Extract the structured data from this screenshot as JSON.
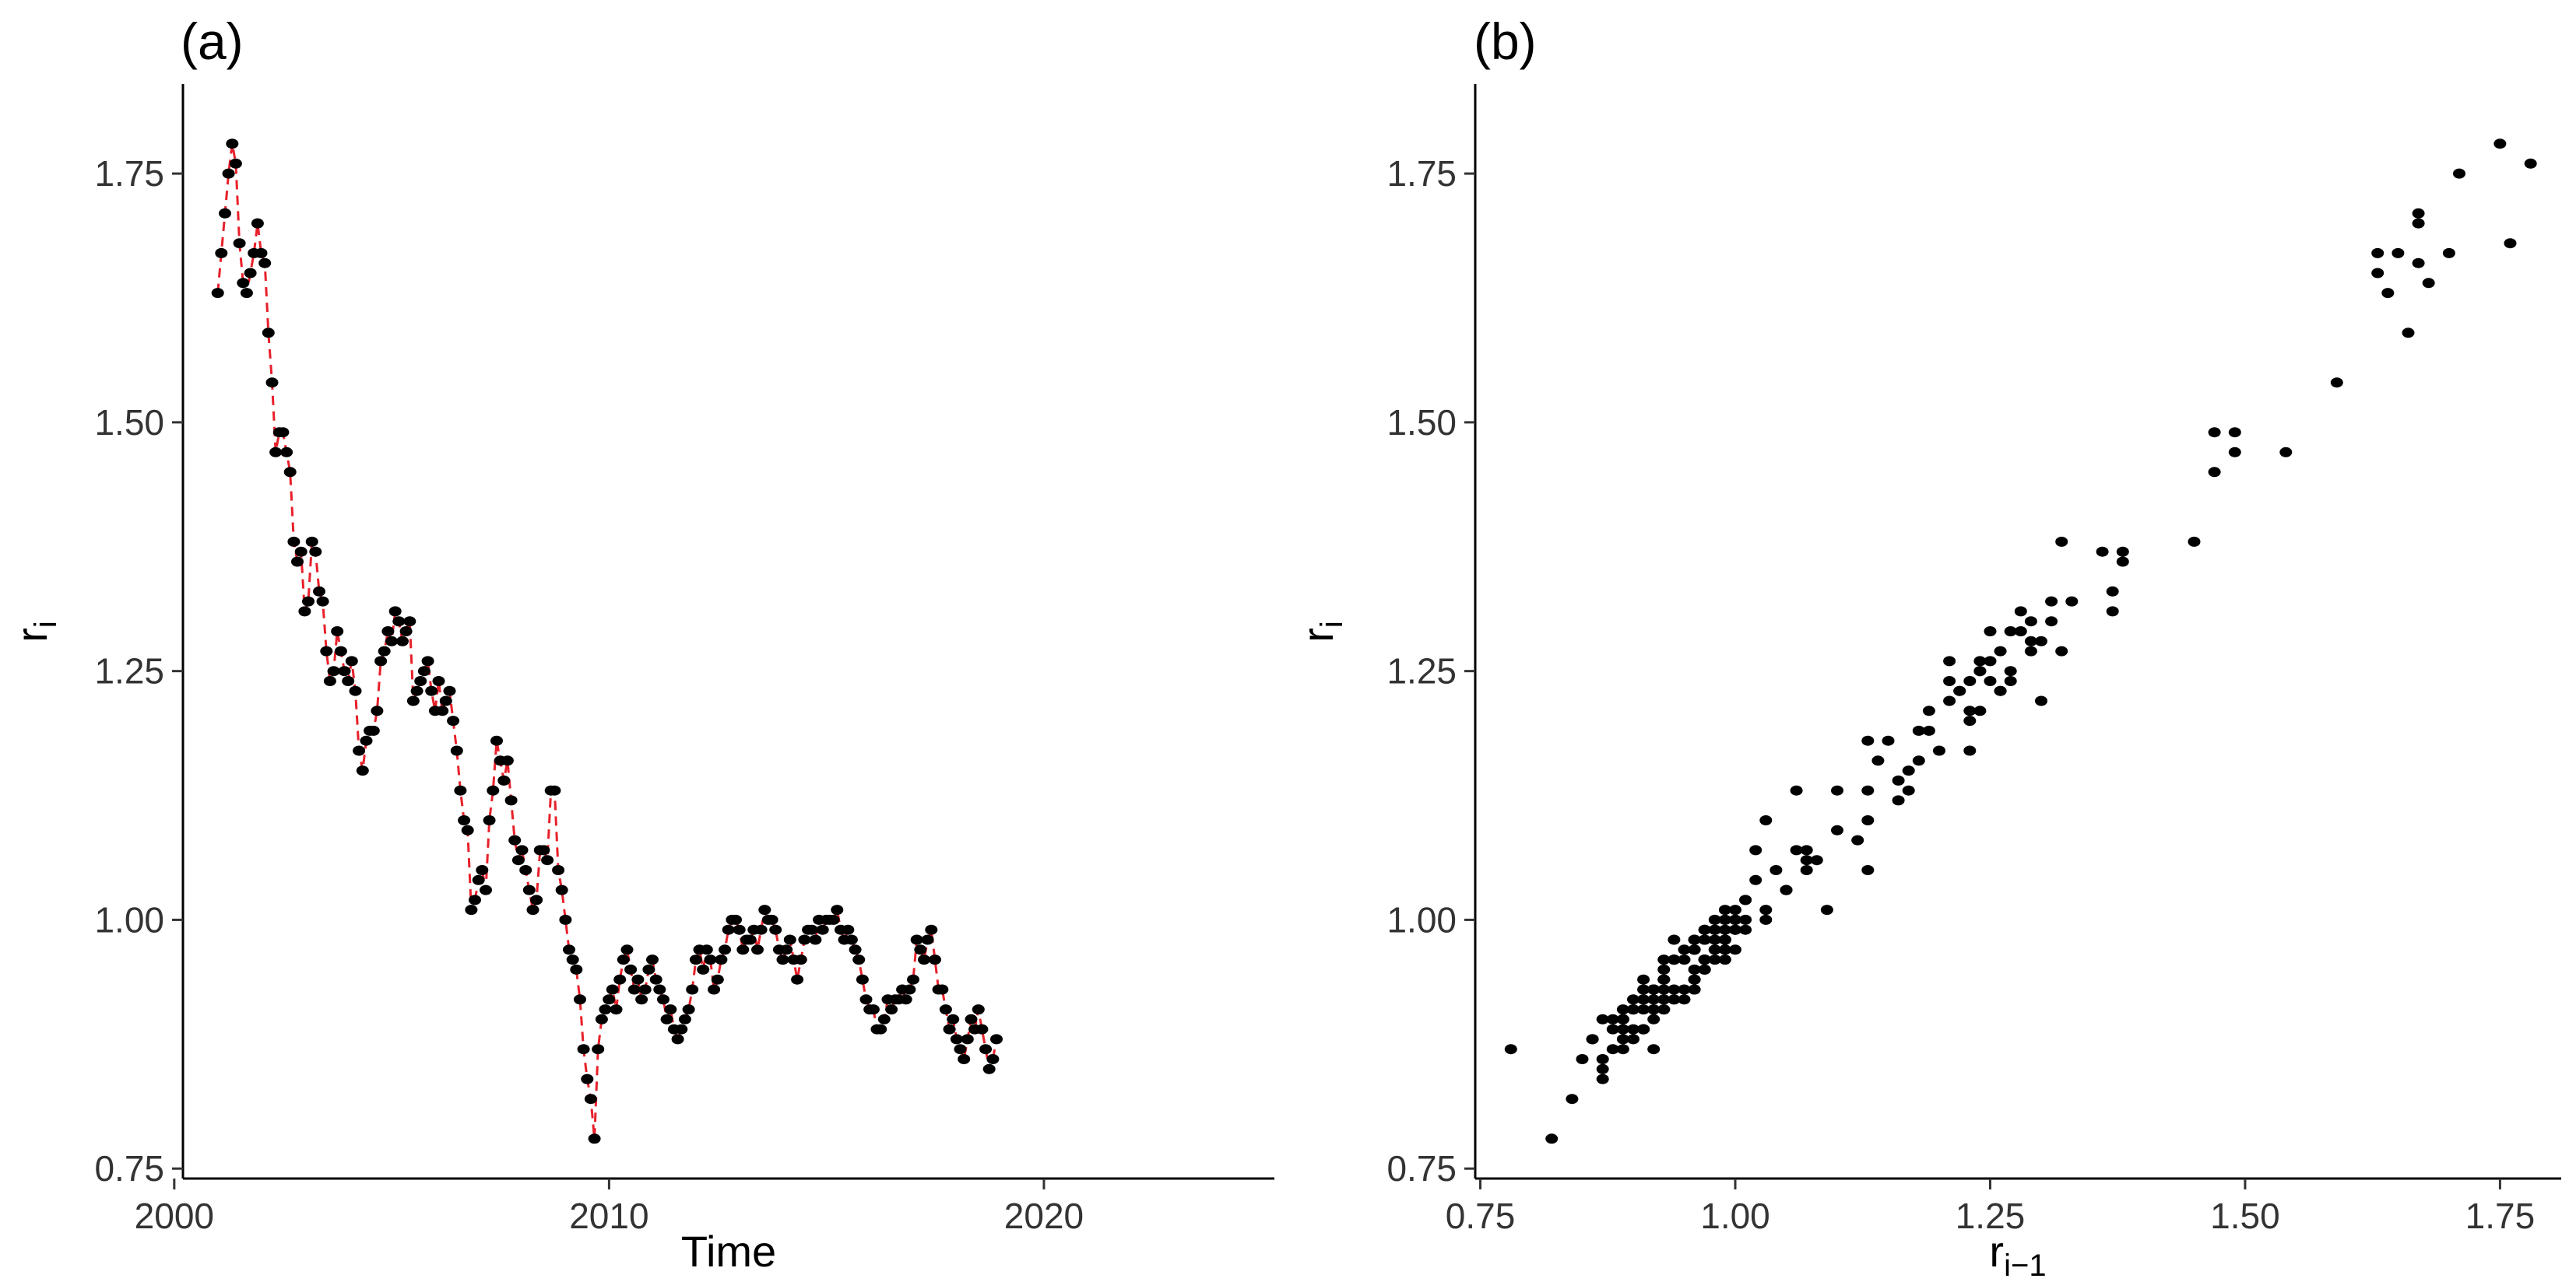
{
  "chart_data": [
    {
      "type": "scatter",
      "panel_label": "(a)",
      "title": "",
      "xlabel": "Time",
      "ylabel": "r",
      "ylabel_sub": "i",
      "xlim": [
        2000.2,
        2025.3
      ],
      "ylim": [
        0.74,
        1.84
      ],
      "x_ticks": [
        2000,
        2010,
        2020
      ],
      "x_tick_labels": [
        "2000",
        "2010",
        "2020"
      ],
      "y_ticks": [
        0.75,
        1.0,
        1.25,
        1.5,
        1.75
      ],
      "y_tick_labels": [
        "0.75",
        "1.00",
        "1.25",
        "1.50",
        "1.75"
      ],
      "grid": false,
      "connector_line": {
        "style": "dashed",
        "color": "#e8202a"
      },
      "point_color": "#000000",
      "series": [
        {
          "start_x": 2001.0,
          "step_x": 0.0833,
          "values": [
            1.63,
            1.67,
            1.71,
            1.75,
            1.78,
            1.76,
            1.68,
            1.64,
            1.63,
            1.65,
            1.67,
            1.7,
            1.67,
            1.66,
            1.59,
            1.54,
            1.47,
            1.49,
            1.49,
            1.47,
            1.45,
            1.38,
            1.36,
            1.37,
            1.31,
            1.32,
            1.38,
            1.37,
            1.33,
            1.32,
            1.27,
            1.24,
            1.25,
            1.29,
            1.27,
            1.25,
            1.24,
            1.26,
            1.23,
            1.17,
            1.15,
            1.18,
            1.19,
            1.19,
            1.21,
            1.26,
            1.27,
            1.29,
            1.28,
            1.31,
            1.3,
            1.28,
            1.29,
            1.3,
            1.22,
            1.23,
            1.24,
            1.25,
            1.26,
            1.23,
            1.21,
            1.24,
            1.21,
            1.22,
            1.23,
            1.2,
            1.17,
            1.13,
            1.1,
            1.09,
            1.01,
            1.02,
            1.04,
            1.05,
            1.03,
            1.1,
            1.13,
            1.18,
            1.16,
            1.14,
            1.16,
            1.12,
            1.08,
            1.06,
            1.07,
            1.05,
            1.03,
            1.01,
            1.02,
            1.07,
            1.07,
            1.06,
            1.13,
            1.13,
            1.05,
            1.03,
            1.0,
            0.97,
            0.96,
            0.95,
            0.92,
            0.87,
            0.84,
            0.82,
            0.78,
            0.87,
            0.9,
            0.91,
            0.92,
            0.93,
            0.91,
            0.94,
            0.96,
            0.97,
            0.95,
            0.93,
            0.94,
            0.92,
            0.93,
            0.95,
            0.96,
            0.94,
            0.93,
            0.92,
            0.9,
            0.91,
            0.89,
            0.88,
            0.89,
            0.9,
            0.91,
            0.93,
            0.96,
            0.97,
            0.95,
            0.97,
            0.96,
            0.93,
            0.94,
            0.96,
            0.97,
            0.99,
            1.0,
            1.0,
            0.99,
            0.97,
            0.98,
            0.98,
            0.99,
            0.97,
            0.99,
            1.01,
            1.0,
            1.0,
            0.99,
            0.97,
            0.96,
            0.97,
            0.98,
            0.96,
            0.94,
            0.96,
            0.98,
            0.99,
            0.99,
            0.98,
            1.0,
            0.99,
            1.0,
            1.0,
            1.0,
            1.01,
            0.99,
            0.98,
            0.99,
            0.98,
            0.97,
            0.96,
            0.94,
            0.92,
            0.91,
            0.91,
            0.89,
            0.89,
            0.9,
            0.92,
            0.91,
            0.92,
            0.92,
            0.93,
            0.92,
            0.93,
            0.94,
            0.98,
            0.97,
            0.96,
            0.98,
            0.99,
            0.96,
            0.93,
            0.93,
            0.91,
            0.89,
            0.9,
            0.88,
            0.87,
            0.86,
            0.88,
            0.9,
            0.89,
            0.91,
            0.89,
            0.87,
            0.85,
            0.86,
            0.88
          ]
        }
      ]
    },
    {
      "type": "scatter",
      "panel_label": "(b)",
      "title": "",
      "xlabel": "r",
      "xlabel_sub": "i−1",
      "ylabel": "r",
      "ylabel_sub": "i",
      "xlim": [
        0.745,
        1.81
      ],
      "ylim": [
        0.74,
        1.84
      ],
      "x_ticks": [
        0.75,
        1.0,
        1.25,
        1.5,
        1.75
      ],
      "x_tick_labels": [
        "0.75",
        "1.00",
        "1.25",
        "1.50",
        "1.75"
      ],
      "y_ticks": [
        0.75,
        1.0,
        1.25,
        1.5,
        1.75
      ],
      "y_tick_labels": [
        "0.75",
        "1.00",
        "1.25",
        "1.50",
        "1.75"
      ],
      "grid": false,
      "point_color": "#000000",
      "derived_from": "lag-1 pairs of panel (a) values"
    }
  ]
}
